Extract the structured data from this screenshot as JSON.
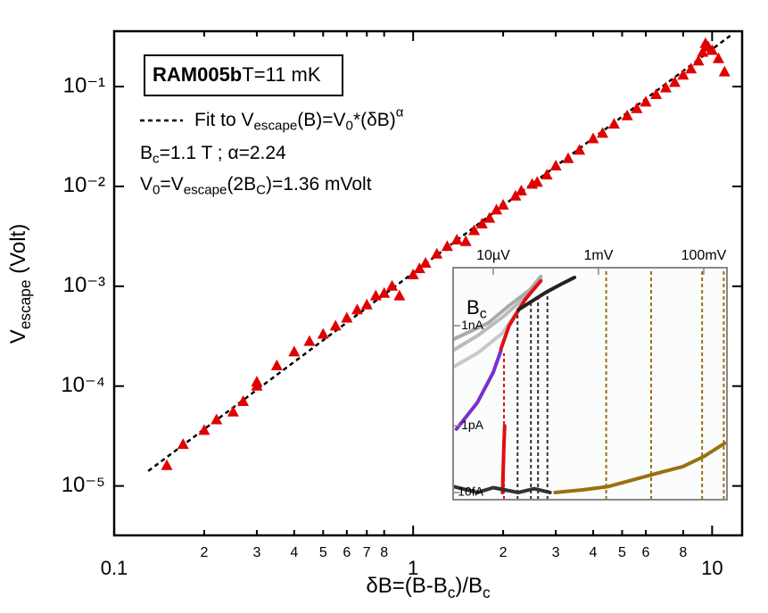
{
  "chart_data": [
    {
      "type": "scatter",
      "xlabel": [
        {
          "t": "δB=(B-B"
        },
        {
          "t": "c",
          "s": "sub"
        },
        {
          "t": ")/B"
        },
        {
          "t": "c",
          "s": "sub"
        }
      ],
      "ylabel": [
        {
          "t": "V"
        },
        {
          "t": "escape",
          "s": "sub"
        },
        {
          "t": " (Volt)"
        }
      ],
      "title": [
        {
          "t": "RAM005b",
          "s": "b"
        },
        {
          "t": "T=11 mK"
        }
      ],
      "annotations": [
        [
          {
            "t": "B"
          },
          {
            "t": "c",
            "s": "sub"
          },
          {
            "t": "=1.1 T ; α=2.24"
          }
        ],
        [
          {
            "t": "V"
          },
          {
            "t": "0",
            "s": "sub"
          },
          {
            "t": "=V"
          },
          {
            "t": "escape",
            "s": "sub"
          },
          {
            "t": "(2B"
          },
          {
            "t": "C",
            "s": "sub"
          },
          {
            "t": ")=1.36 mVolt"
          }
        ]
      ],
      "xscale": "log",
      "yscale": "log",
      "xlim": [
        0.1,
        12.6
      ],
      "ylim": [
        3.2e-06,
        0.358
      ],
      "xticks": [
        0.1,
        {
          "value": 0.2,
          "label": "2"
        },
        {
          "value": 0.3,
          "label": "3"
        },
        {
          "value": 0.4,
          "label": "4"
        },
        {
          "value": 0.5,
          "label": "5"
        },
        {
          "value": 0.6,
          "label": "6"
        },
        {
          "value": 0.7,
          "label": "7"
        },
        {
          "value": 0.8,
          "label": "8"
        },
        1,
        {
          "value": 2,
          "label": "2"
        },
        {
          "value": 3,
          "label": "3"
        },
        {
          "value": 4,
          "label": "4"
        },
        {
          "value": 5,
          "label": "5"
        },
        {
          "value": 6,
          "label": "6"
        },
        {
          "value": 8,
          "label": "8"
        },
        10
      ],
      "yticks": [
        {
          "value": 0.1,
          "label": "10⁻¹"
        },
        {
          "value": 0.01,
          "label": "10⁻²"
        },
        {
          "value": 0.001,
          "label": "10⁻³"
        },
        {
          "value": 0.0001,
          "label": "10⁻⁴"
        },
        {
          "value": 1e-05,
          "label": "10⁻⁵"
        }
      ],
      "series": [
        {
          "name": [
            {
              "t": "Fit to V"
            },
            {
              "t": "escape",
              "s": "sub"
            },
            {
              "t": "(B)=V"
            },
            {
              "t": "0",
              "s": "sub"
            },
            {
              "t": "*(δB)"
            },
            {
              "t": "α",
              "s": "sup"
            }
          ],
          "color": "#000000",
          "style": "dashed",
          "x": [
            0.13,
            11.5
          ],
          "values": [
            1.41e-05,
            0.323
          ]
        },
        {
          "color": "#e00000",
          "marker": "triangle",
          "x": [
            0.15,
            0.17,
            0.2,
            0.22,
            0.25,
            0.27,
            0.3,
            0.3,
            0.35,
            0.4,
            0.45,
            0.5,
            0.55,
            0.6,
            0.65,
            0.7,
            0.75,
            0.8,
            0.85,
            0.9,
            1.0,
            1.05,
            1.1,
            1.2,
            1.3,
            1.4,
            1.5,
            1.6,
            1.7,
            1.8,
            1.9,
            2.0,
            2.2,
            2.3,
            2.5,
            2.6,
            2.8,
            3.0,
            3.3,
            3.6,
            4.0,
            4.3,
            4.7,
            5.2,
            5.6,
            6.0,
            6.5,
            7.0,
            7.5,
            8.0,
            8.5,
            9.0,
            9.3,
            9.5,
            9.7,
            10,
            10.5,
            11
          ],
          "values": [
            1.6e-05,
            2.6e-05,
            3.6e-05,
            4.6e-05,
            5.5e-05,
            7e-05,
            0.00011,
            0.0001,
            0.00016,
            0.00022,
            0.00028,
            0.00033,
            0.0004,
            0.00048,
            0.00058,
            0.00065,
            0.0008,
            0.00085,
            0.001,
            0.0008,
            0.0013,
            0.0015,
            0.0017,
            0.0021,
            0.0025,
            0.0029,
            0.0028,
            0.0036,
            0.0042,
            0.0048,
            0.0058,
            0.0065,
            0.008,
            0.009,
            0.0105,
            0.011,
            0.013,
            0.016,
            0.019,
            0.023,
            0.03,
            0.034,
            0.042,
            0.051,
            0.06,
            0.07,
            0.083,
            0.097,
            0.11,
            0.13,
            0.15,
            0.18,
            0.22,
            0.27,
            0.25,
            0.23,
            0.19,
            0.14
          ]
        }
      ]
    },
    {
      "type": "line",
      "xscale": "log",
      "yscale": "log",
      "annotation": [
        {
          "t": "B"
        },
        {
          "t": "c",
          "s": "sub"
        }
      ],
      "xlim": [
        1.73e-06,
        0.276
      ],
      "ylim": [
        6.1e-15,
        5.5e-08
      ],
      "xticks": [
        {
          "value": 1e-05,
          "label": "10µV"
        },
        {
          "value": 0.001,
          "label": "1mV"
        },
        {
          "value": 0.1,
          "label": "100mV"
        }
      ],
      "yticks": [
        {
          "value": 1e-09,
          "label": "1nA"
        },
        {
          "value": 1e-12,
          "label": "1pA"
        },
        {
          "value": 1e-14,
          "label": "10fA"
        }
      ],
      "series": [
        {
          "color": "#c8c8c8",
          "x": [
            1.8e-06,
            5e-06,
            1.5e-05,
            3e-05,
            6e-05
          ],
          "values": [
            6e-11,
            1.5e-10,
            6e-10,
            3e-09,
            1.5e-08
          ]
        },
        {
          "color": "#bbbbbb",
          "x": [
            1.8e-06,
            5e-06,
            1.5e-05,
            4e-05,
            8e-05
          ],
          "values": [
            1.9e-10,
            5e-10,
            1.8e-09,
            7e-09,
            2.6e-08
          ]
        },
        {
          "color": "#aaaaaa",
          "x": [
            1.8e-06,
            8e-06,
            2e-05,
            5e-05,
            8e-05
          ],
          "values": [
            4e-10,
            1.2e-09,
            4e-09,
            1.2e-08,
            3e-08
          ]
        },
        {
          "color": "#7a2fd0",
          "x": [
            2e-06,
            5e-06,
            1e-05,
            1.4e-05
          ],
          "values": [
            8e-13,
            5e-12,
            4e-11,
            1.8e-10
          ]
        },
        {
          "color": "#e01010",
          "x": [
            1.4e-05,
            2e-05,
            4e-05,
            8e-05
          ],
          "values": [
            2e-10,
            1e-09,
            6e-09,
            2.2e-08
          ]
        },
        {
          "color": "#e01010",
          "x": [
            1.5e-05,
            1.6e-05,
            1.65e-05
          ],
          "values": [
            1e-14,
            3e-13,
            1e-12
          ]
        },
        {
          "color": "#222222",
          "x": [
            3e-05,
            6e-05,
            0.0001,
            0.0002,
            0.00035
          ],
          "values": [
            3e-09,
            6e-09,
            1e-08,
            1.8e-08,
            2.8e-08
          ]
        },
        {
          "color": "#333333",
          "x": [
            1.8e-06,
            5e-06,
            1e-05,
            3e-05,
            6e-05,
            0.00012
          ],
          "values": [
            1.5e-14,
            1e-14,
            1.4e-14,
            1e-14,
            1.3e-14,
            1e-14
          ]
        },
        {
          "color": "#9a7010",
          "x": [
            0.00015,
            0.0005,
            0.0015,
            0.005,
            0.015,
            0.04,
            0.1,
            0.25
          ],
          "values": [
            1e-14,
            1.2e-14,
            1.5e-14,
            2.5e-14,
            4e-14,
            6e-14,
            1.2e-13,
            3e-13
          ]
        }
      ],
      "vlines": [
        {
          "x": 1.6e-05,
          "color": "#e01010",
          "values": [
            6.1e-15,
            1.5e-10
          ]
        },
        {
          "x": 2.9e-05,
          "color": "#333333",
          "values": [
            6.1e-15,
            3e-09
          ]
        },
        {
          "x": 5.2e-05,
          "color": "#333333",
          "values": [
            6.1e-15,
            6e-09
          ]
        },
        {
          "x": 7.1e-05,
          "color": "#333333",
          "values": [
            6.1e-15,
            9e-09
          ]
        },
        {
          "x": 0.000107,
          "color": "#333333",
          "values": [
            6.1e-15,
            1.1e-08
          ]
        },
        {
          "x": 0.0014,
          "color": "#9a7010",
          "values": [
            6.1e-15,
            5.5e-08
          ]
        },
        {
          "x": 0.01,
          "color": "#9a7010",
          "values": [
            6.1e-15,
            5.5e-08
          ]
        },
        {
          "x": 0.093,
          "color": "#9a7010",
          "values": [
            6.1e-15,
            5.5e-08
          ]
        },
        {
          "x": 0.24,
          "color": "#9a7010",
          "values": [
            6.1e-15,
            5.5e-08
          ]
        }
      ]
    }
  ]
}
